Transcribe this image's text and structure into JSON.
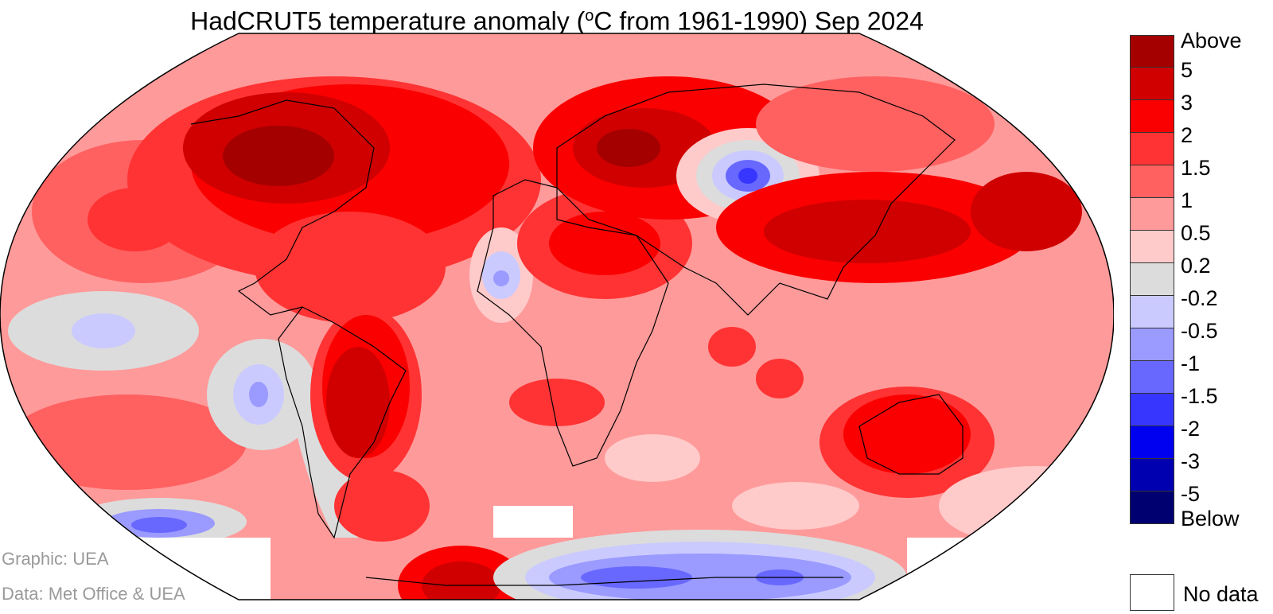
{
  "title": {
    "prefix": "HadCRUT5 temperature anomaly (",
    "sup": "o",
    "suffix": "C from 1961-1990) Sep 2024"
  },
  "credits": {
    "graphic": "Graphic: UEA",
    "data": "Data: Met Office & UEA"
  },
  "legend": {
    "bins": [
      {
        "color": "#a50000"
      },
      {
        "color": "#d00000"
      },
      {
        "color": "#fa0000"
      },
      {
        "color": "#ff3333"
      },
      {
        "color": "#ff6060"
      },
      {
        "color": "#ff9a9a"
      },
      {
        "color": "#ffcaca"
      },
      {
        "color": "#dcdcdc"
      },
      {
        "color": "#cacaff"
      },
      {
        "color": "#9a9aff"
      },
      {
        "color": "#6868ff"
      },
      {
        "color": "#3636ff"
      },
      {
        "color": "#0000f0"
      },
      {
        "color": "#0000b0"
      },
      {
        "color": "#000070"
      }
    ],
    "labels": [
      "Above",
      "5",
      "3",
      "2",
      "1.5",
      "1",
      "0.5",
      "0.2",
      "-0.2",
      "-0.5",
      "-1",
      "-1.5",
      "-2",
      "-3",
      "-5",
      "Below"
    ],
    "nodata_label": "No data"
  }
}
